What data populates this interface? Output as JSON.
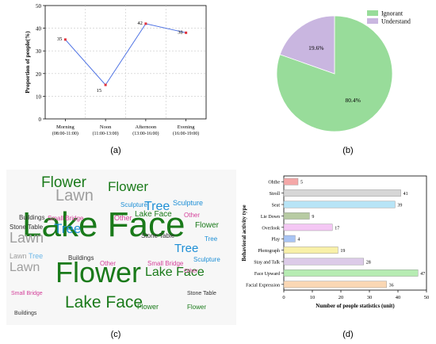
{
  "captions": {
    "a": "(a)",
    "b": "(b)",
    "c": "(c)",
    "d": "(d)"
  },
  "chart_data": [
    {
      "type": "line",
      "title": "",
      "xlabel": "",
      "ylabel": "Proportion of people(%)",
      "ylim": [
        0,
        50
      ],
      "yticks": [
        0,
        10,
        20,
        30,
        40,
        50
      ],
      "grid": true,
      "categories": [
        "Morning",
        "Noon",
        "Afternoon",
        "Evening"
      ],
      "category_sub": [
        "(08:00-11:00)",
        "(11:00-13:00)",
        "(13:00-16:00)",
        "(16:00-19:00)"
      ],
      "values": [
        35,
        15,
        42,
        38
      ],
      "value_labels": [
        "35",
        "15",
        "42",
        "38"
      ],
      "colors": {
        "line": "#4a6fe3",
        "point": "#e0303a"
      }
    },
    {
      "type": "pie",
      "title": "",
      "legend_position": "top-right",
      "slices": [
        {
          "label": "Ignorant",
          "value": 80.4,
          "text": "80.4%",
          "color": "#98dc9a"
        },
        {
          "label": "Understand",
          "value": 19.6,
          "text": "19.6%",
          "color": "#c9b6e0"
        }
      ]
    },
    {
      "type": "wordcloud",
      "title": "",
      "colors": [
        "#1a7a1a",
        "#1e8fd6",
        "#9e9e9e",
        "#d4409a",
        "#333333",
        "#6db7e8"
      ],
      "words": [
        {
          "text": "Flower",
          "size": 36,
          "color": 0
        },
        {
          "text": "Lake Face",
          "size": 44,
          "color": 0
        },
        {
          "text": "Lake Face",
          "size": 21,
          "color": 0
        },
        {
          "text": "Flower",
          "size": 19,
          "color": 0
        },
        {
          "text": "Flower",
          "size": 17,
          "color": 0
        },
        {
          "text": "Lawn",
          "size": 20,
          "color": 2
        },
        {
          "text": "Lawn",
          "size": 18,
          "color": 2
        },
        {
          "text": "Lawn",
          "size": 16,
          "color": 2
        },
        {
          "text": "Tree",
          "size": 17,
          "color": 1
        },
        {
          "text": "Tree",
          "size": 16,
          "color": 1
        },
        {
          "text": "Tree",
          "size": 15,
          "color": 1
        },
        {
          "text": "Lake Face",
          "size": 16,
          "color": 0
        },
        {
          "text": "Lake Face",
          "size": 10,
          "color": 0
        },
        {
          "text": "Flower",
          "size": 10,
          "color": 0
        },
        {
          "text": "Flower",
          "size": 9,
          "color": 0
        },
        {
          "text": "Sculpture",
          "size": 9,
          "color": 1
        },
        {
          "text": "Sculpture",
          "size": 8,
          "color": 1
        },
        {
          "text": "Sculpture",
          "size": 8,
          "color": 1
        },
        {
          "text": "Stone Table",
          "size": 8,
          "color": 4
        },
        {
          "text": "Stone Table",
          "size": 8,
          "color": 4
        },
        {
          "text": "Stone Table",
          "size": 7,
          "color": 4
        },
        {
          "text": "Small Bridge",
          "size": 8,
          "color": 3
        },
        {
          "text": "Small Bridge",
          "size": 8,
          "color": 3
        },
        {
          "text": "Small Bridge",
          "size": 7,
          "color": 3
        },
        {
          "text": "Other",
          "size": 9,
          "color": 3
        },
        {
          "text": "Other",
          "size": 8,
          "color": 3
        },
        {
          "text": "Other",
          "size": 8,
          "color": 3
        },
        {
          "text": "Other",
          "size": 7,
          "color": 3
        },
        {
          "text": "Buildings",
          "size": 8,
          "color": 4
        },
        {
          "text": "Buildings",
          "size": 8,
          "color": 4
        },
        {
          "text": "Buildings",
          "size": 7,
          "color": 4
        },
        {
          "text": "Tree",
          "size": 9,
          "color": 5
        },
        {
          "text": "Lawn",
          "size": 9,
          "color": 2
        },
        {
          "text": "Flower",
          "size": 8,
          "color": 0
        },
        {
          "text": "Tree",
          "size": 8,
          "color": 1
        }
      ]
    },
    {
      "type": "bar",
      "orientation": "horizontal",
      "title": "",
      "xlabel": "Number of people statistics (unit)",
      "ylabel": "Behavioral activity type",
      "xlim": [
        0,
        50
      ],
      "xticks": [
        0,
        10,
        20,
        30,
        40,
        50
      ],
      "categories": [
        "Ohthe",
        "Stroll",
        "Seat",
        "Lie Down",
        "Overlook",
        "Play",
        "Photograph",
        "Stay and Talk",
        "Face Upward",
        "Facial Expression"
      ],
      "values": [
        5,
        41,
        39,
        9,
        17,
        4,
        19,
        28,
        47,
        36
      ],
      "colors": [
        "#f4a8a8",
        "#d6d6d6",
        "#b8e4f6",
        "#b7cba3",
        "#f4c7f4",
        "#a8c4f4",
        "#f8f0a8",
        "#dccbe8",
        "#b6ecb2",
        "#fad7b4"
      ]
    }
  ]
}
